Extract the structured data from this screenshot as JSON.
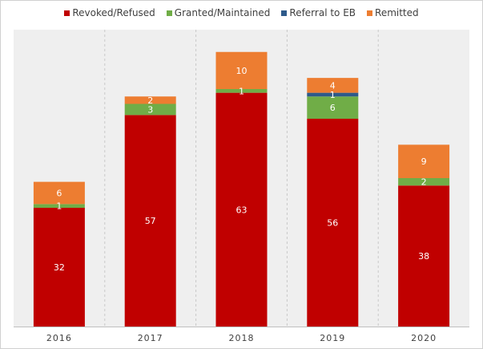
{
  "chart_data": {
    "type": "bar",
    "stacked": true,
    "categories": [
      "2016",
      "2017",
      "2018",
      "2019",
      "2020"
    ],
    "series": [
      {
        "name": "Revoked/Refused",
        "color": "#c00000",
        "label_color": "#ffffff",
        "values": [
          32,
          57,
          63,
          56,
          38
        ],
        "labels": [
          "32",
          "57",
          "63",
          "56",
          "38"
        ]
      },
      {
        "name": "Granted/Maintained",
        "color": "#70ad47",
        "label_color": "#ffffff",
        "values": [
          1,
          3,
          1,
          6,
          2
        ],
        "labels": [
          "1",
          "3",
          "1",
          "6",
          "2"
        ]
      },
      {
        "name": "Referral to EB",
        "color": "#2e5a8a",
        "label_color": "#ffffff",
        "values": [
          0,
          0,
          0,
          1,
          0
        ],
        "labels": [
          "",
          "",
          "",
          "1",
          ""
        ]
      },
      {
        "name": "Remitted",
        "color": "#ed7d31",
        "label_color": "#ffffff",
        "values": [
          6,
          2,
          10,
          4,
          9
        ],
        "labels": [
          "6",
          "2",
          "10",
          "4",
          "9"
        ]
      }
    ],
    "ylim": [
      0,
      80
    ],
    "grid": true,
    "legend_position": "top"
  }
}
